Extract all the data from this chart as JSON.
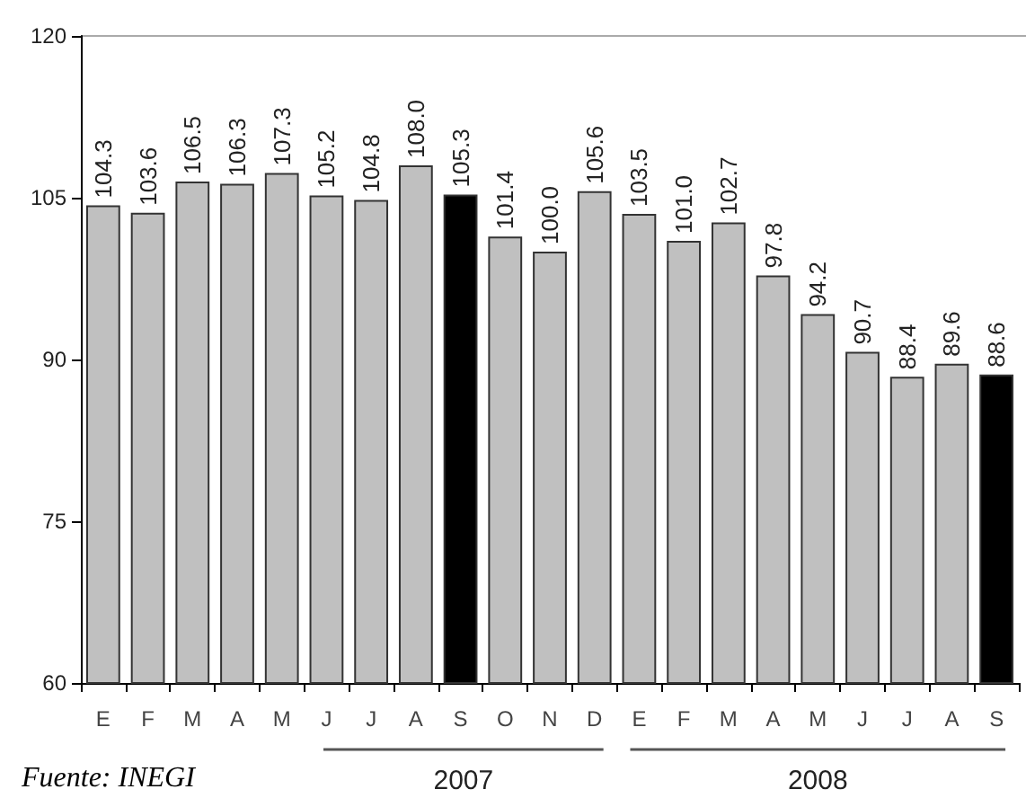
{
  "chart_data": {
    "type": "bar",
    "categories": [
      "E",
      "F",
      "M",
      "A",
      "M",
      "J",
      "J",
      "A",
      "S",
      "O",
      "N",
      "D",
      "E",
      "F",
      "M",
      "A",
      "M",
      "J",
      "J",
      "A",
      "S"
    ],
    "values": [
      104.3,
      103.6,
      106.5,
      106.3,
      107.3,
      105.2,
      104.8,
      108.0,
      105.3,
      101.4,
      100.0,
      105.6,
      103.5,
      101.0,
      102.7,
      97.8,
      94.2,
      90.7,
      88.4,
      89.6,
      88.6
    ],
    "value_labels": [
      "104.3",
      "103.6",
      "106.5",
      "106.3",
      "107.3",
      "105.2",
      "104.8",
      "108.0",
      "105.3",
      "101.4",
      "100.0",
      "105.6",
      "103.5",
      "101.0",
      "102.7",
      "97.8",
      "94.2",
      "90.7",
      "88.4",
      "89.6",
      "88.6"
    ],
    "colors": [
      "#c0c0c0",
      "#c0c0c0",
      "#c0c0c0",
      "#c0c0c0",
      "#c0c0c0",
      "#c0c0c0",
      "#c0c0c0",
      "#c0c0c0",
      "#000000",
      "#c0c0c0",
      "#c0c0c0",
      "#c0c0c0",
      "#c0c0c0",
      "#c0c0c0",
      "#c0c0c0",
      "#c0c0c0",
      "#c0c0c0",
      "#c0c0c0",
      "#c0c0c0",
      "#c0c0c0",
      "#000000"
    ],
    "ylim": [
      60,
      120
    ],
    "yticks": [
      60,
      75,
      90,
      105,
      120
    ],
    "grid": false,
    "annotations": [
      "Fuente: INEGI",
      "2007",
      "2008"
    ]
  }
}
